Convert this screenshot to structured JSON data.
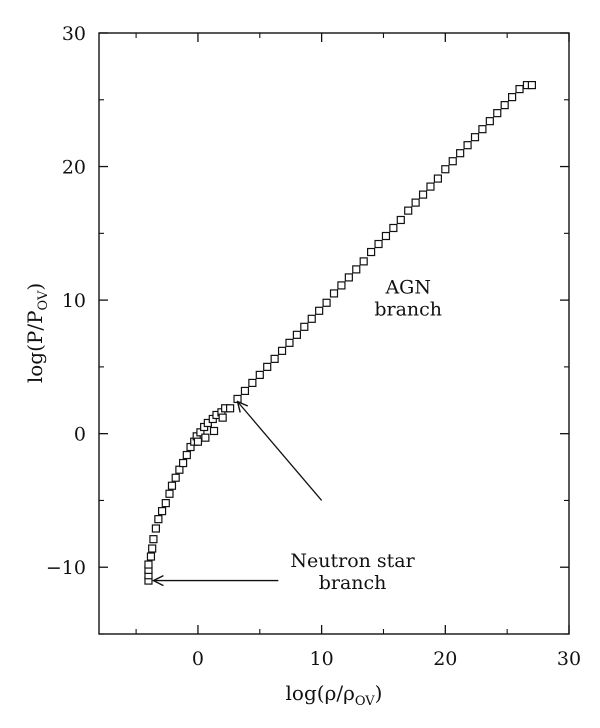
{
  "chart_data": {
    "type": "scatter",
    "xlabel": "log(ρ/ρ",
    "xlabel_sub": "OV",
    "ylabel": "log(P/P",
    "ylabel_sub": "OV",
    "xlim": [
      -8,
      30
    ],
    "ylim": [
      -15,
      30
    ],
    "x_ticks": [
      0,
      10,
      20,
      30
    ],
    "x_tick_labels": [
      "0",
      "10",
      "20",
      "30"
    ],
    "y_ticks": [
      -10,
      0,
      10,
      20,
      30
    ],
    "y_tick_labels": [
      "−10",
      "0",
      "10",
      "20",
      "30"
    ],
    "grid": false,
    "marker": "open-square",
    "series": [
      {
        "x": [
          -4,
          -4,
          -4,
          -4,
          -3.8,
          -3.7,
          -3.6,
          -3.4,
          -3.2,
          -2.9,
          -2.6,
          -2.3,
          -2.1,
          -1.8,
          -1.5,
          -1.2,
          -0.9,
          -0.6,
          -0.3,
          -0.1,
          0.2,
          0.5,
          0.8,
          1.2,
          1.5,
          1.9,
          2.2,
          0,
          0.6,
          1.3,
          2.0,
          2.6,
          3.2,
          3.8,
          4.4,
          5.0,
          5.6,
          6.2,
          6.8,
          7.4,
          8.0,
          8.6,
          9.2,
          9.8,
          10.4,
          11.0,
          11.6,
          12.2,
          12.8,
          13.4,
          14.0,
          14.6,
          15.2,
          15.8,
          16.4,
          17.0,
          17.6,
          18.2,
          18.8,
          19.4,
          20.0,
          20.6,
          21.2,
          21.8,
          22.4,
          23.0,
          23.6,
          24.2,
          24.8,
          25.4,
          26.0,
          26.6,
          27.0
        ],
        "y": [
          -11,
          -10.6,
          -10.2,
          -9.8,
          -9.2,
          -8.6,
          -7.9,
          -7.1,
          -6.4,
          -5.8,
          -5.2,
          -4.5,
          -3.9,
          -3.3,
          -2.7,
          -2.2,
          -1.6,
          -1.0,
          -0.6,
          -0.2,
          0.1,
          0.5,
          0.8,
          1.1,
          1.4,
          1.6,
          1.9,
          -0.6,
          -0.3,
          0.2,
          1.2,
          1.9,
          2.6,
          3.2,
          3.8,
          4.4,
          5.0,
          5.6,
          6.2,
          6.8,
          7.4,
          8.0,
          8.6,
          9.2,
          9.8,
          10.5,
          11.1,
          11.7,
          12.3,
          12.9,
          13.6,
          14.2,
          14.8,
          15.4,
          16.0,
          16.7,
          17.3,
          17.9,
          18.5,
          19.1,
          19.8,
          20.4,
          21.0,
          21.6,
          22.2,
          22.8,
          23.4,
          24.0,
          24.6,
          25.2,
          25.8,
          26.1,
          26.1
        ]
      }
    ],
    "annotations": [
      {
        "lines": [
          "AGN",
          "branch"
        ],
        "x": 17,
        "y": 10.5
      },
      {
        "lines": [
          "Neutron star",
          "branch"
        ],
        "x": 12.5,
        "y": -10,
        "arrow_from": [
          6.5,
          -11
        ],
        "arrow_to": [
          -3.6,
          -11
        ]
      },
      {
        "lines": [],
        "arrow_from": [
          10,
          -5
        ],
        "arrow_to": [
          3.2,
          2.4
        ]
      }
    ]
  }
}
